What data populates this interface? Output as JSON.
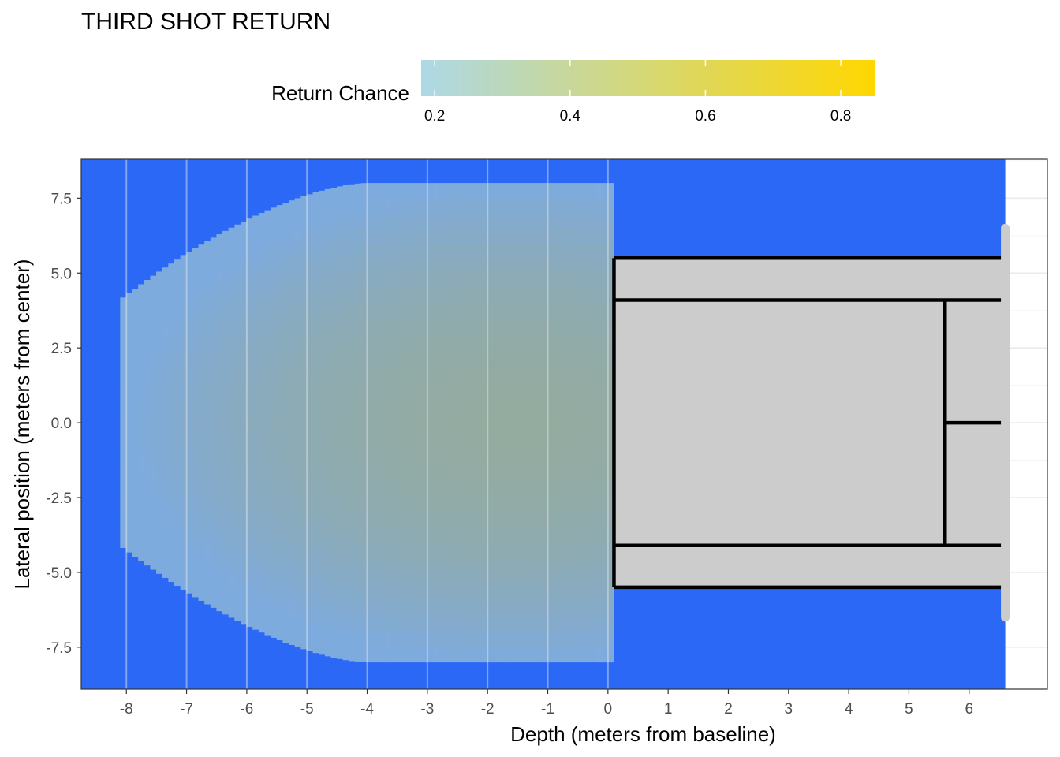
{
  "chart_data": {
    "type": "heatmap",
    "title": "THIRD SHOT RETURN",
    "xlabel": "Depth (meters from baseline)",
    "ylabel": "Lateral position (meters from center)",
    "xlim": [
      -8.75,
      7.3
    ],
    "ylim": [
      -8.9,
      8.8
    ],
    "x_ticks": [
      -8,
      -7,
      -6,
      -5,
      -4,
      -3,
      -2,
      -1,
      0,
      1,
      2,
      3,
      4,
      5,
      6
    ],
    "y_ticks": [
      7.5,
      5.0,
      2.5,
      0.0,
      -2.5,
      -5.0,
      -7.5
    ],
    "x_tick_labels": [
      "-8",
      "-7",
      "-6",
      "-5",
      "-4",
      "-3",
      "-2",
      "-1",
      "0",
      "1",
      "2",
      "3",
      "4",
      "5",
      "6"
    ],
    "y_tick_labels": [
      "7.5",
      "5.0",
      "2.5",
      "0.0",
      "-2.5",
      "-5.0",
      "-7.5"
    ],
    "legend": {
      "title": "Return Chance",
      "placement": "top",
      "min": 0.18,
      "max": 0.85,
      "ticks": [
        0.2,
        0.4,
        0.6,
        0.8
      ],
      "tick_labels": [
        "0.2",
        "0.4",
        "0.6",
        "0.8"
      ],
      "colors": [
        "#add8e6",
        "#ffd700"
      ]
    },
    "colors": {
      "field": "#2b68f5",
      "court": "#cccccc",
      "court_lines": "#000000",
      "net": "#cccccc"
    },
    "heatmap_region": {
      "x_range": [
        -8.1,
        0.05
      ],
      "y_extent_max": 8.0,
      "peak": {
        "x": -1.5,
        "y": 0.0,
        "value": 0.55
      },
      "edge_value": 0.25
    },
    "court": {
      "x_range": [
        0.1,
        6.6
      ],
      "sidelines_y": [
        -5.5,
        5.5
      ],
      "service_lines_y": [
        -4.1,
        4.1
      ],
      "service_line_x": 5.6,
      "center_service_line_y": 0.0,
      "net_x": 6.6,
      "net_y_range": [
        -6.5,
        6.5
      ]
    }
  }
}
